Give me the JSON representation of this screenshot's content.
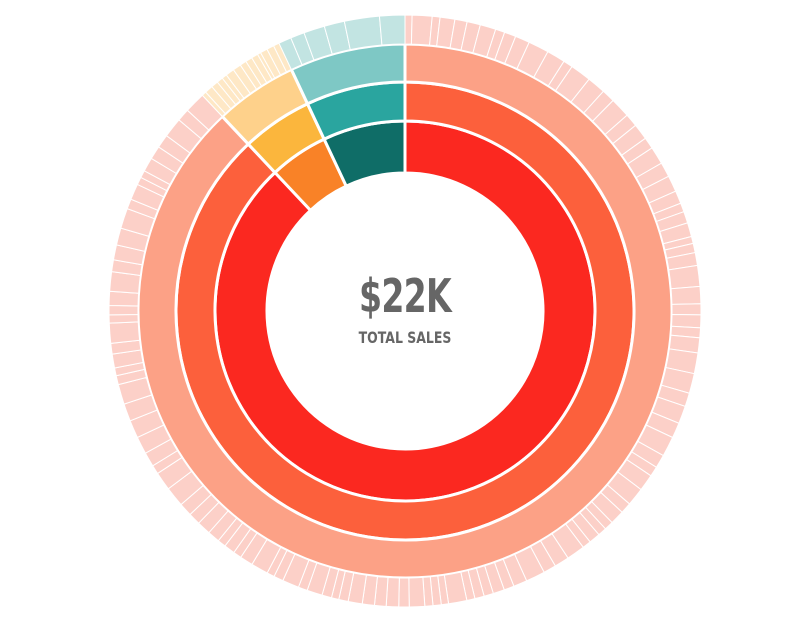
{
  "center": {
    "value": "$22K",
    "label": "TOTAL SALES"
  },
  "chart_data": {
    "type": "sunburst",
    "title": "",
    "rings": [
      {
        "level": 1,
        "segments": [
          {
            "share": 0.88,
            "color": "#fb2820"
          },
          {
            "share": 0.05,
            "color": "#f98227"
          },
          {
            "share": 0.07,
            "color": "#0f6d67"
          }
        ]
      },
      {
        "level": 2,
        "segments": [
          {
            "share": 0.88,
            "color": "#fc603c"
          },
          {
            "share": 0.05,
            "color": "#fbb63d"
          },
          {
            "share": 0.07,
            "color": "#2aa59f"
          }
        ]
      },
      {
        "level": 3,
        "segments": [
          {
            "share": 0.88,
            "color": "#fca186"
          },
          {
            "share": 0.05,
            "color": "#fed18b"
          },
          {
            "share": 0.07,
            "color": "#7ec8c5"
          }
        ]
      },
      {
        "level": 4,
        "segments": [
          {
            "share": 0.88,
            "color": "#fcd0c8",
            "subdivisions": 120
          },
          {
            "share": 0.05,
            "color": "#fee8c6",
            "subdivisions": 14
          },
          {
            "share": 0.07,
            "color": "#c2e4e2",
            "subdivisions": 6
          }
        ]
      }
    ]
  }
}
